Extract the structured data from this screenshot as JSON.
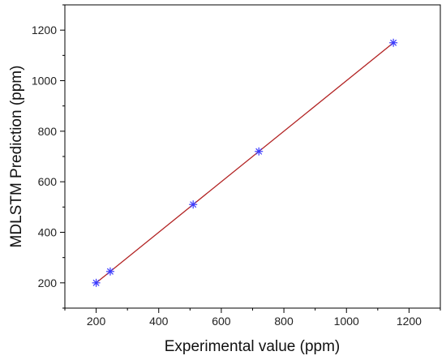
{
  "chart_data": {
    "type": "scatter",
    "xlabel": "Experimental value (ppm)",
    "ylabel": "MDLSTM Prediction (ppm)",
    "xlim": [
      100,
      1300
    ],
    "ylim": [
      100,
      1300
    ],
    "x_ticks": [
      200,
      400,
      600,
      800,
      1000,
      1200
    ],
    "y_ticks": [
      200,
      400,
      600,
      800,
      1000,
      1200
    ],
    "grid": false,
    "series": [
      {
        "kind": "points",
        "marker": "asterisk",
        "color": "#3a3aff",
        "x": [
          200,
          245,
          510,
          720,
          1150
        ],
        "y": [
          200,
          245,
          510,
          720,
          1150
        ]
      },
      {
        "kind": "fit-line",
        "color": "#b22222",
        "x": [
          200,
          1150
        ],
        "y": [
          200,
          1150
        ]
      }
    ]
  }
}
